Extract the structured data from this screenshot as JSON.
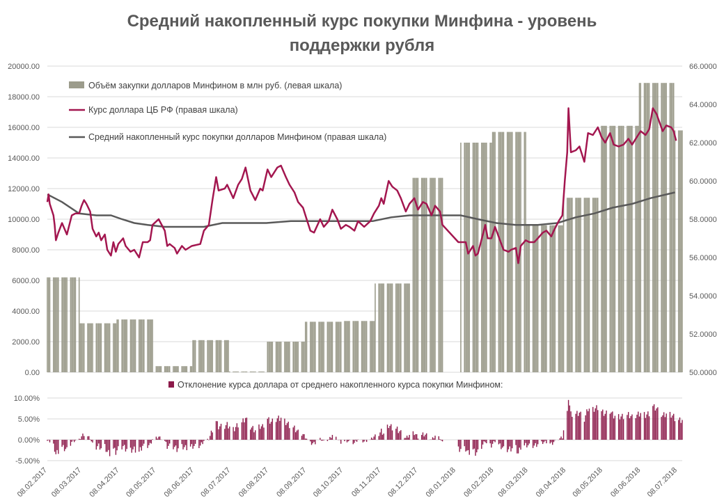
{
  "title_lines": [
    "Средний накопленный курс покупки Минфина - уровень",
    "поддержки рубля"
  ],
  "colors": {
    "volume": "#9c9c8c",
    "rate": "#a3164f",
    "avg": "#595959",
    "deviation": "#8c1a4a",
    "grid": "#d9d9d9",
    "text": "#595959"
  },
  "chart_data": [
    {
      "type": "bar+line",
      "x_axis": "dates",
      "x_range": [
        "2017-02-08",
        "2018-07-12"
      ],
      "left_axis": {
        "min": 0,
        "max": 20000,
        "ticks": [
          "0.00",
          "2000.00",
          "4000.00",
          "6000.00",
          "8000.00",
          "10000.00",
          "12000.00",
          "14000.00",
          "16000.00",
          "18000.00",
          "20000.00"
        ]
      },
      "right_axis": {
        "min": 50,
        "max": 66,
        "ticks": [
          "50.0000",
          "52.0000",
          "54.0000",
          "56.0000",
          "58.0000",
          "60.0000",
          "62.0000",
          "64.0000",
          "66.0000"
        ]
      },
      "grid": true,
      "legend_position": "top-left",
      "series": [
        {
          "name": "Объём закупки долларов Минфином в млн руб. (левая шкала)",
          "type": "bar",
          "axis": "left",
          "segments": [
            {
              "from": "2017-02-08",
              "to": "2017-03-06",
              "value": 6200
            },
            {
              "from": "2017-03-07",
              "to": "2017-04-05",
              "value": 3200
            },
            {
              "from": "2017-04-06",
              "to": "2017-05-05",
              "value": 3450
            },
            {
              "from": "2017-05-06",
              "to": "2017-06-06",
              "value": 400
            },
            {
              "from": "2017-06-07",
              "to": "2017-07-06",
              "value": 2100
            },
            {
              "from": "2017-07-07",
              "to": "2017-08-06",
              "value": 50
            },
            {
              "from": "2017-08-07",
              "to": "2017-09-06",
              "value": 2000
            },
            {
              "from": "2017-09-07",
              "to": "2017-10-06",
              "value": 3300
            },
            {
              "from": "2017-10-07",
              "to": "2017-11-02",
              "value": 3350
            },
            {
              "from": "2017-11-03",
              "to": "2017-12-02",
              "value": 5800
            },
            {
              "from": "2017-12-03",
              "to": "2017-12-28",
              "value": 12700
            },
            {
              "from": "2018-01-12",
              "to": "2018-02-06",
              "value": 15000
            },
            {
              "from": "2018-02-07",
              "to": "2018-03-06",
              "value": 15700
            },
            {
              "from": "2018-03-07",
              "to": "2018-04-05",
              "value": 9600
            },
            {
              "from": "2018-04-06",
              "to": "2018-05-06",
              "value": 11400
            },
            {
              "from": "2018-05-07",
              "to": "2018-06-06",
              "value": 16100
            },
            {
              "from": "2018-06-07",
              "to": "2018-07-05",
              "value": 18900
            },
            {
              "from": "2018-07-06",
              "to": "2018-07-12",
              "value": 15800
            }
          ]
        },
        {
          "name": "Курс доллара ЦБ РФ (правая шкала)",
          "type": "line",
          "axis": "right",
          "points": [
            [
              "2017-02-08",
              58.9
            ],
            [
              "2017-02-09",
              59.3
            ],
            [
              "2017-02-10",
              58.8
            ],
            [
              "2017-02-13",
              58.2
            ],
            [
              "2017-02-14",
              57.7
            ],
            [
              "2017-02-15",
              56.9
            ],
            [
              "2017-02-17",
              57.3
            ],
            [
              "2017-02-20",
              57.8
            ],
            [
              "2017-02-24",
              57.2
            ],
            [
              "2017-02-28",
              58.2
            ],
            [
              "2017-03-03",
              58.3
            ],
            [
              "2017-03-06",
              58.3
            ],
            [
              "2017-03-08",
              58.7
            ],
            [
              "2017-03-10",
              59.0
            ],
            [
              "2017-03-12",
              58.8
            ],
            [
              "2017-03-15",
              58.4
            ],
            [
              "2017-03-17",
              57.5
            ],
            [
              "2017-03-20",
              57.1
            ],
            [
              "2017-03-22",
              57.3
            ],
            [
              "2017-03-24",
              56.9
            ],
            [
              "2017-03-27",
              57.2
            ],
            [
              "2017-03-29",
              56.4
            ],
            [
              "2017-04-01",
              56.1
            ],
            [
              "2017-04-03",
              56.8
            ],
            [
              "2017-04-05",
              56.3
            ],
            [
              "2017-04-07",
              56.7
            ],
            [
              "2017-04-11",
              57.0
            ],
            [
              "2017-04-13",
              56.6
            ],
            [
              "2017-04-17",
              56.3
            ],
            [
              "2017-04-20",
              56.4
            ],
            [
              "2017-04-24",
              56.0
            ],
            [
              "2017-04-27",
              56.8
            ],
            [
              "2017-05-01",
              56.8
            ],
            [
              "2017-05-03",
              56.9
            ],
            [
              "2017-05-05",
              57.7
            ],
            [
              "2017-05-10",
              58.0
            ],
            [
              "2017-05-15",
              57.4
            ],
            [
              "2017-05-17",
              56.6
            ],
            [
              "2017-05-19",
              56.7
            ],
            [
              "2017-05-23",
              56.5
            ],
            [
              "2017-05-25",
              56.2
            ],
            [
              "2017-05-29",
              56.6
            ],
            [
              "2017-06-01",
              56.4
            ],
            [
              "2017-06-06",
              56.6
            ],
            [
              "2017-06-13",
              56.7
            ],
            [
              "2017-06-16",
              57.4
            ],
            [
              "2017-06-20",
              57.7
            ],
            [
              "2017-06-23",
              59.0
            ],
            [
              "2017-06-26",
              60.2
            ],
            [
              "2017-06-28",
              59.5
            ],
            [
              "2017-07-03",
              59.6
            ],
            [
              "2017-07-05",
              59.8
            ],
            [
              "2017-07-10",
              59.1
            ],
            [
              "2017-07-14",
              59.8
            ],
            [
              "2017-07-17",
              60.1
            ],
            [
              "2017-07-20",
              60.7
            ],
            [
              "2017-07-24",
              59.5
            ],
            [
              "2017-07-28",
              59.0
            ],
            [
              "2017-08-01",
              59.6
            ],
            [
              "2017-08-03",
              59.5
            ],
            [
              "2017-08-07",
              60.6
            ],
            [
              "2017-08-10",
              60.2
            ],
            [
              "2017-08-15",
              60.7
            ],
            [
              "2017-08-18",
              60.8
            ],
            [
              "2017-08-22",
              60.2
            ],
            [
              "2017-08-25",
              59.8
            ],
            [
              "2017-08-29",
              59.4
            ],
            [
              "2017-09-01",
              58.9
            ],
            [
              "2017-09-05",
              58.6
            ],
            [
              "2017-09-08",
              58.0
            ],
            [
              "2017-09-11",
              57.4
            ],
            [
              "2017-09-14",
              57.3
            ],
            [
              "2017-09-19",
              58.0
            ],
            [
              "2017-09-22",
              57.6
            ],
            [
              "2017-09-26",
              57.9
            ],
            [
              "2017-09-29",
              58.5
            ],
            [
              "2017-10-03",
              58.0
            ],
            [
              "2017-10-06",
              57.5
            ],
            [
              "2017-10-10",
              57.7
            ],
            [
              "2017-10-13",
              57.6
            ],
            [
              "2017-10-17",
              57.4
            ],
            [
              "2017-10-20",
              57.9
            ],
            [
              "2017-10-25",
              57.6
            ],
            [
              "2017-10-30",
              57.9
            ],
            [
              "2017-11-02",
              58.3
            ],
            [
              "2017-11-06",
              58.7
            ],
            [
              "2017-11-08",
              59.1
            ],
            [
              "2017-11-10",
              58.8
            ],
            [
              "2017-11-14",
              60.0
            ],
            [
              "2017-11-17",
              59.7
            ],
            [
              "2017-11-21",
              59.5
            ],
            [
              "2017-11-24",
              59.1
            ],
            [
              "2017-11-28",
              58.4
            ],
            [
              "2017-12-01",
              58.8
            ],
            [
              "2017-12-05",
              59.1
            ],
            [
              "2017-12-08",
              58.5
            ],
            [
              "2017-12-12",
              58.9
            ],
            [
              "2017-12-15",
              58.8
            ],
            [
              "2017-12-19",
              58.2
            ],
            [
              "2017-12-22",
              58.7
            ],
            [
              "2017-12-26",
              58.4
            ],
            [
              "2017-12-28",
              57.7
            ],
            [
              "2018-01-10",
              56.8
            ],
            [
              "2018-01-12",
              56.8
            ],
            [
              "2018-01-16",
              56.8
            ],
            [
              "2018-01-18",
              56.2
            ],
            [
              "2018-01-22",
              56.6
            ],
            [
              "2018-01-24",
              56.1
            ],
            [
              "2018-01-26",
              56.2
            ],
            [
              "2018-01-30",
              57.2
            ],
            [
              "2018-02-01",
              57.7
            ],
            [
              "2018-02-03",
              57.0
            ],
            [
              "2018-02-06",
              57.0
            ],
            [
              "2018-02-09",
              57.6
            ],
            [
              "2018-02-13",
              56.9
            ],
            [
              "2018-02-16",
              56.4
            ],
            [
              "2018-02-20",
              56.3
            ],
            [
              "2018-02-22",
              56.4
            ],
            [
              "2018-02-26",
              56.5
            ],
            [
              "2018-02-28",
              55.7
            ],
            [
              "2018-03-02",
              56.6
            ],
            [
              "2018-03-06",
              56.9
            ],
            [
              "2018-03-09",
              56.8
            ],
            [
              "2018-03-13",
              56.8
            ],
            [
              "2018-03-16",
              57.0
            ],
            [
              "2018-03-20",
              57.3
            ],
            [
              "2018-03-23",
              57.4
            ],
            [
              "2018-03-27",
              57.1
            ],
            [
              "2018-03-29",
              57.4
            ],
            [
              "2018-04-02",
              57.9
            ],
            [
              "2018-04-05",
              58.2
            ],
            [
              "2018-04-07",
              60.0
            ],
            [
              "2018-04-09",
              61.5
            ],
            [
              "2018-04-10",
              63.8
            ],
            [
              "2018-04-12",
              61.5
            ],
            [
              "2018-04-16",
              61.6
            ],
            [
              "2018-04-19",
              61.8
            ],
            [
              "2018-04-23",
              61.0
            ],
            [
              "2018-04-26",
              62.5
            ],
            [
              "2018-04-30",
              62.4
            ],
            [
              "2018-05-04",
              62.8
            ],
            [
              "2018-05-07",
              62.3
            ],
            [
              "2018-05-10",
              62.0
            ],
            [
              "2018-05-14",
              62.5
            ],
            [
              "2018-05-17",
              61.9
            ],
            [
              "2018-05-21",
              61.8
            ],
            [
              "2018-05-25",
              61.9
            ],
            [
              "2018-05-29",
              62.2
            ],
            [
              "2018-06-01",
              61.9
            ],
            [
              "2018-06-04",
              62.2
            ],
            [
              "2018-06-08",
              62.6
            ],
            [
              "2018-06-12",
              62.4
            ],
            [
              "2018-06-15",
              62.7
            ],
            [
              "2018-06-18",
              63.8
            ],
            [
              "2018-06-21",
              63.5
            ],
            [
              "2018-06-26",
              62.6
            ],
            [
              "2018-06-29",
              62.9
            ],
            [
              "2018-07-03",
              62.8
            ],
            [
              "2018-07-05",
              62.6
            ],
            [
              "2018-07-07",
              62.1
            ]
          ]
        },
        {
          "name": "Средний накопленный курс покупки долларов Минфином (правая шкала)",
          "type": "line",
          "axis": "right",
          "points": [
            [
              "2017-02-08",
              59.3
            ],
            [
              "2017-02-20",
              58.9
            ],
            [
              "2017-03-06",
              58.3
            ],
            [
              "2017-03-20",
              58.2
            ],
            [
              "2017-04-01",
              58.2
            ],
            [
              "2017-04-10",
              58.0
            ],
            [
              "2017-04-20",
              57.8
            ],
            [
              "2017-05-01",
              57.7
            ],
            [
              "2017-05-15",
              57.6
            ],
            [
              "2017-06-01",
              57.6
            ],
            [
              "2017-06-16",
              57.6
            ],
            [
              "2017-07-01",
              57.8
            ],
            [
              "2017-07-16",
              57.8
            ],
            [
              "2017-08-06",
              57.8
            ],
            [
              "2017-08-26",
              57.9
            ],
            [
              "2017-09-16",
              57.9
            ],
            [
              "2017-10-16",
              57.9
            ],
            [
              "2017-11-01",
              57.9
            ],
            [
              "2017-11-16",
              58.1
            ],
            [
              "2017-12-01",
              58.2
            ],
            [
              "2017-12-16",
              58.2
            ],
            [
              "2018-01-12",
              58.2
            ],
            [
              "2018-01-26",
              58.0
            ],
            [
              "2018-02-10",
              57.8
            ],
            [
              "2018-02-26",
              57.7
            ],
            [
              "2018-03-16",
              57.7
            ],
            [
              "2018-04-01",
              57.8
            ],
            [
              "2018-04-16",
              58.1
            ],
            [
              "2018-05-01",
              58.3
            ],
            [
              "2018-05-16",
              58.6
            ],
            [
              "2018-06-01",
              58.8
            ],
            [
              "2018-06-16",
              59.1
            ],
            [
              "2018-07-06",
              59.4
            ]
          ]
        }
      ]
    },
    {
      "type": "bar",
      "x_axis": "dates",
      "x_range": [
        "2017-02-08",
        "2018-07-12"
      ],
      "y_axis": {
        "min": -5,
        "max": 10,
        "unit": "%",
        "ticks": [
          "-5.00%",
          "0.00%",
          "5.00%",
          "10.00%"
        ]
      },
      "x_tick_labels": [
        "08.02.2017",
        "08.03.2017",
        "08.04.2017",
        "08.05.2017",
        "08.06.2017",
        "08.07.2017",
        "08.08.2017",
        "08.09.2017",
        "08.10.2017",
        "08.11.2017",
        "08.12.2017",
        "08.01.2018",
        "08.02.2018",
        "08.03.2018",
        "08.04.2018",
        "08.05.2018",
        "08.06.2018",
        "08.07.2018"
      ],
      "legend_position": "top",
      "series": [
        {
          "name": "Отклонение курса доллара от среднего накопленного курса покупки Минфином:",
          "derived_from": "Курс доллара ЦБ РФ / Средний накопленный курс покупки - 1, %",
          "extends_to": "2018-07-12"
        }
      ]
    }
  ]
}
